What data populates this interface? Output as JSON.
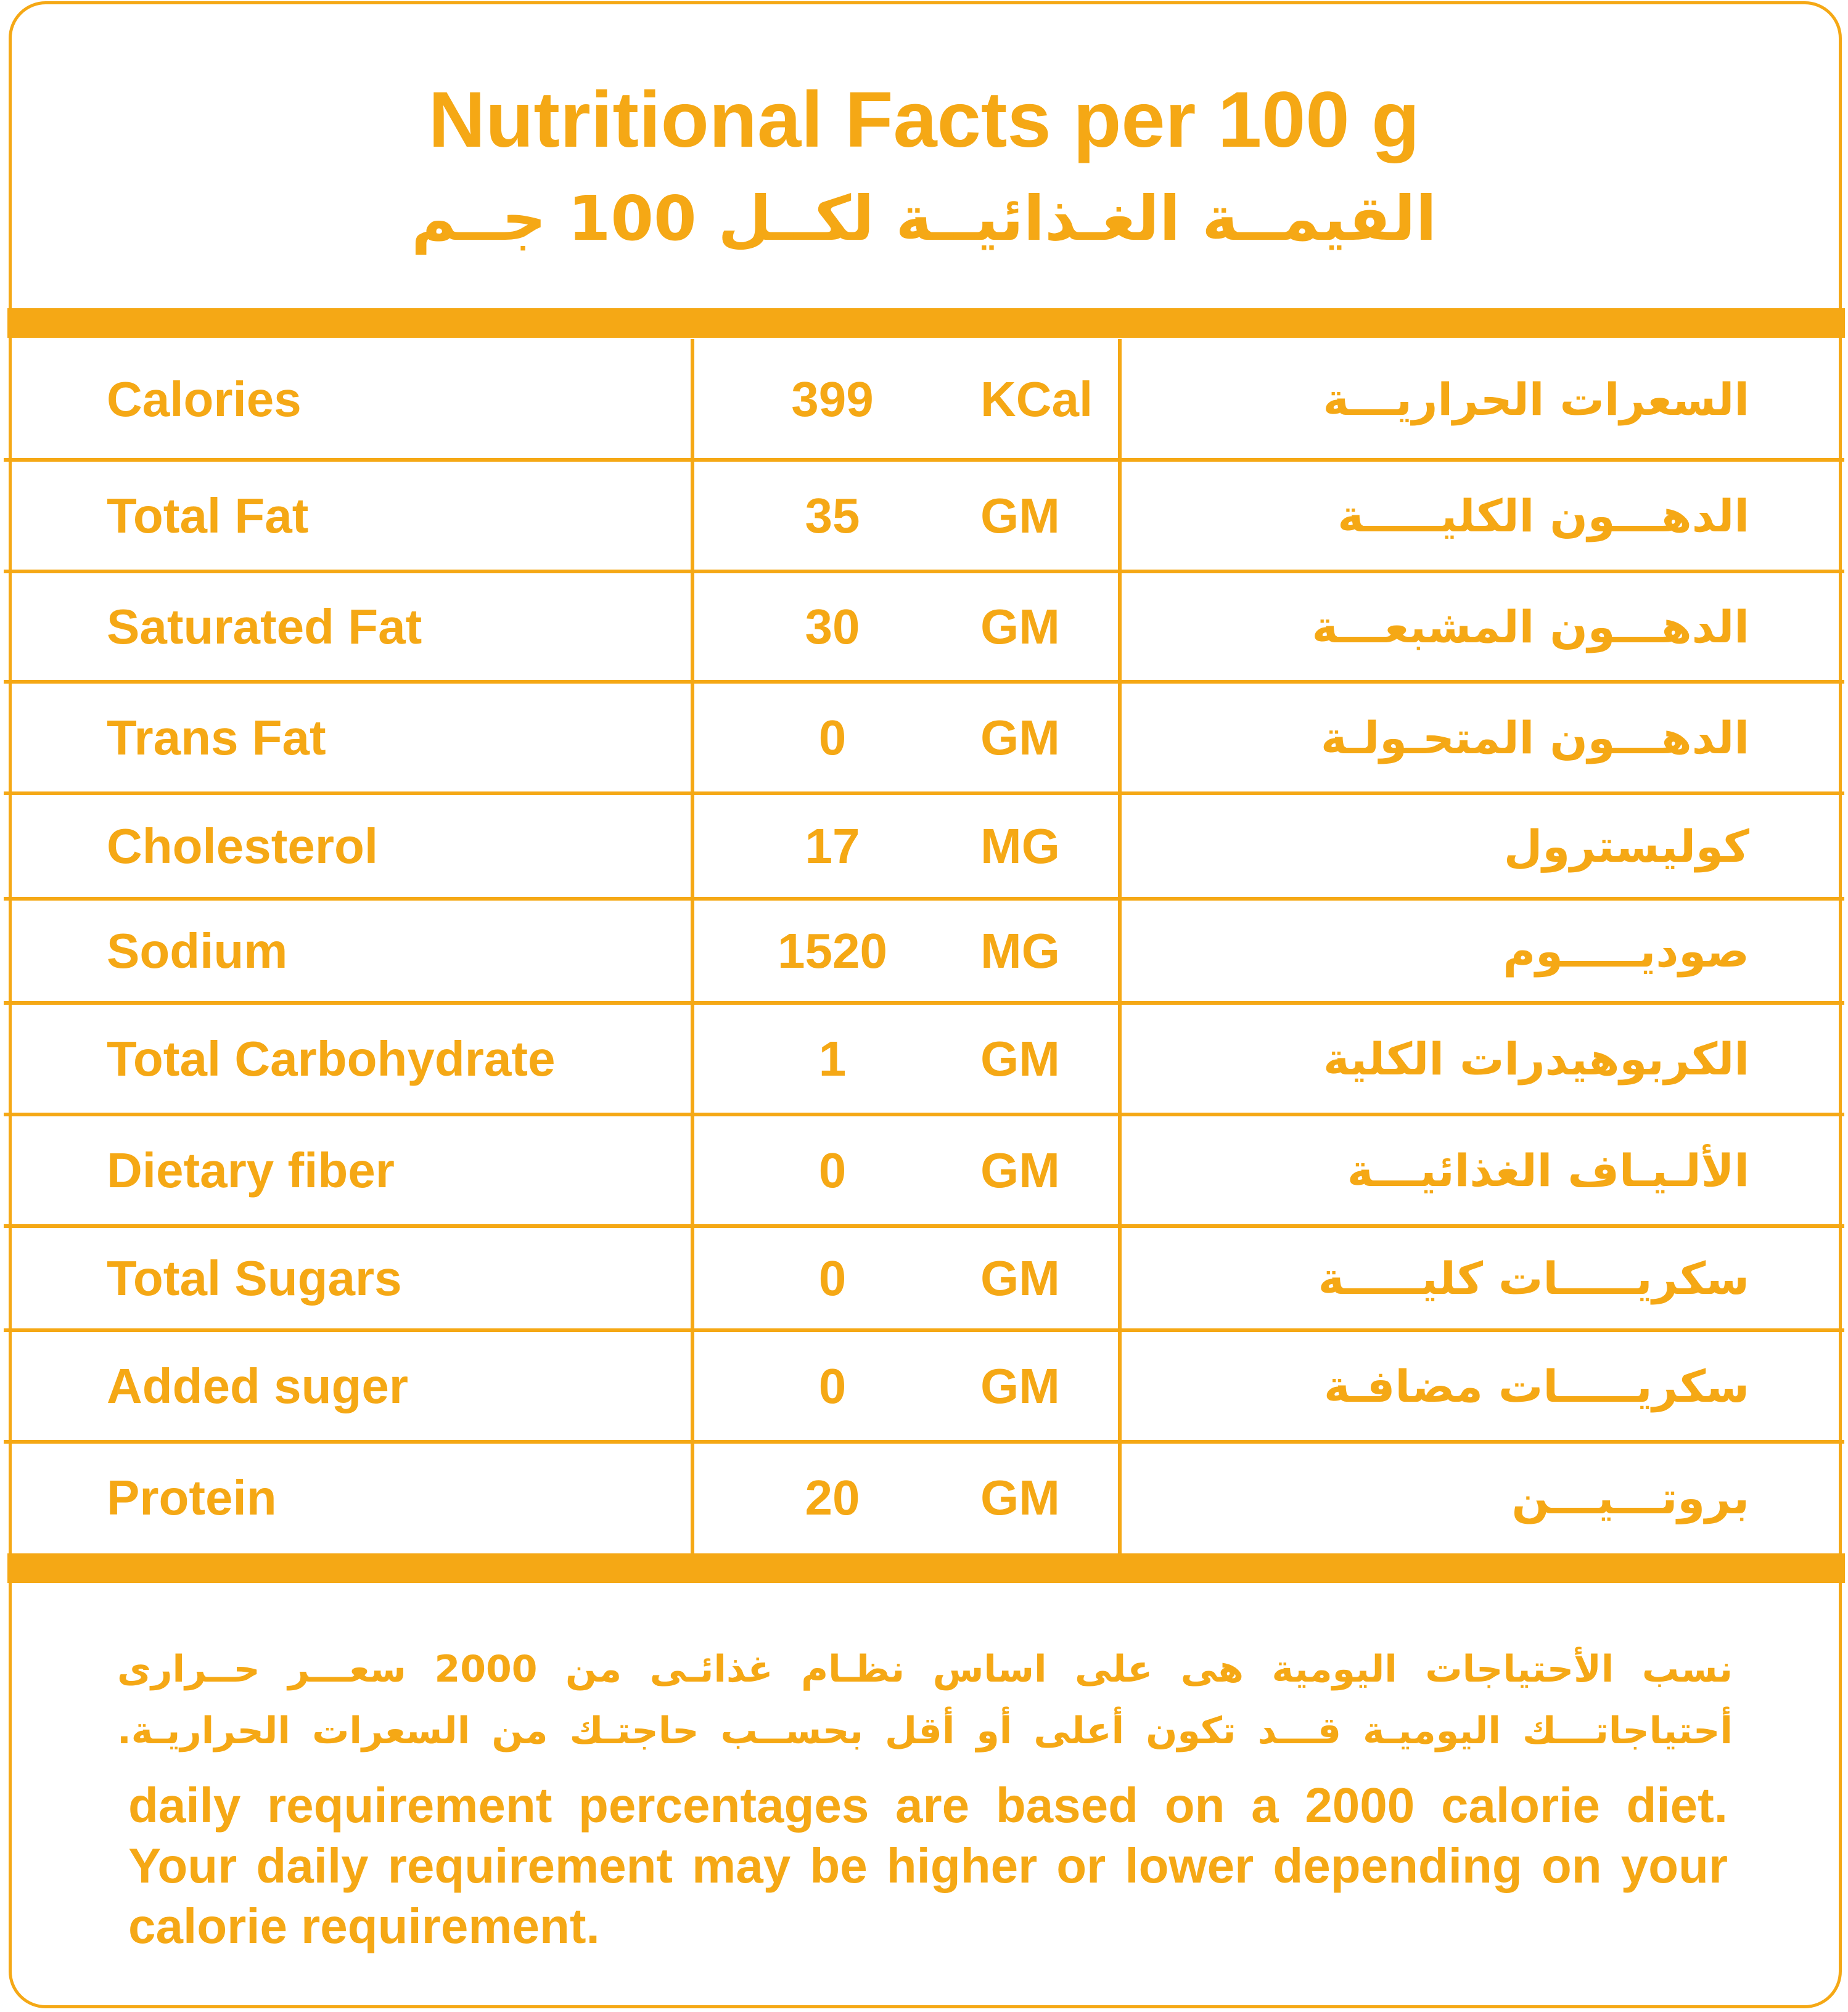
{
  "colors": {
    "accent": "#F5A815",
    "background": "#FFFFFF"
  },
  "title": {
    "en": "Nutritional Facts per 100 g",
    "ar": "القيمــة الغـذائيــة لكــل 100 جــم"
  },
  "rows": [
    {
      "en": "Calories",
      "value": "399",
      "unit": "KCal",
      "ar": "السعرات الحراريـــة"
    },
    {
      "en": "Total Fat",
      "value": "35",
      "unit": "GM",
      "ar": "الدهـــون الكليـــــة"
    },
    {
      "en": "Saturated Fat",
      "value": "30",
      "unit": "GM",
      "ar": "الدهـــون المشبعـــة"
    },
    {
      "en": "Trans Fat",
      "value": "0",
      "unit": "GM",
      "ar": "الدهـــون المتحـولـة"
    },
    {
      "en": "Cholesterol",
      "value": "17",
      "unit": "MG",
      "ar": "كوليسترول"
    },
    {
      "en": "Sodium",
      "value": "1520",
      "unit": "MG",
      "ar": "صوديـــــوم"
    },
    {
      "en": "Total Carbohydrate",
      "value": "1",
      "unit": "GM",
      "ar": "الكربوهيدرات الكلية"
    },
    {
      "en": "Dietary fiber",
      "value": "0",
      "unit": "GM",
      "ar": "الألـيـاف الغذائيـــة"
    },
    {
      "en": "Total Sugars",
      "value": "0",
      "unit": "GM",
      "ar": "سكريـــــات كليـــــة"
    },
    {
      "en": "Added suger",
      "value": "0",
      "unit": "GM",
      "ar": "سكريـــــات مضافـة"
    },
    {
      "en": "Protein",
      "value": "20",
      "unit": "GM",
      "ar": "بروتـــيـــن"
    }
  ],
  "footer": {
    "ar_line1": "نسب الأحتياجات اليومية هى على اساس نظـام غذائـى من 2000 سعـــر حــرارى",
    "ar_line2": "أحتياجاتـــك اليوميـة قـــد تكون أعلى أو أقل بحســب حاجتـك من السعرات الحراريـة.",
    "en": "daily requirement percentages are based on a 2000 calorie diet. Your daily requirement may be higher or lower depending on your calorie requirement."
  }
}
